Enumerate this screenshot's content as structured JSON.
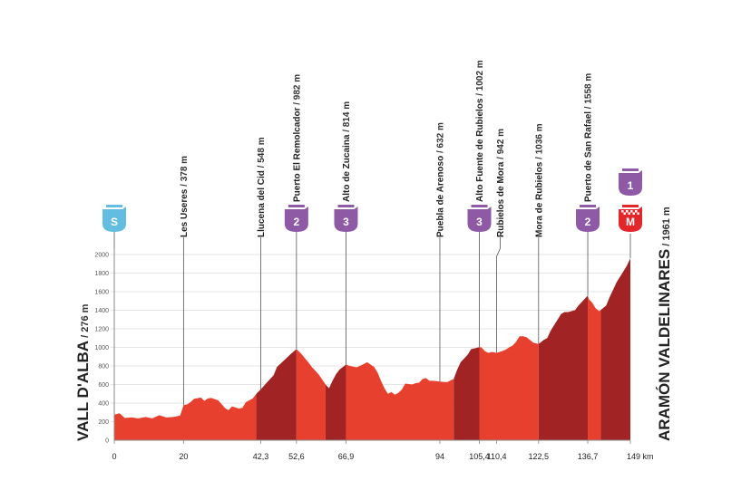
{
  "chart_data": {
    "type": "area",
    "title": "",
    "xlabel": "",
    "ylabel": "",
    "x_unit": "km",
    "y_unit": "m",
    "xlim": [
      0,
      149
    ],
    "ylim": [
      0,
      2000
    ],
    "y_ticks": [
      0,
      200,
      400,
      600,
      800,
      1000,
      1200,
      1400,
      1600,
      1800,
      2000
    ],
    "x_ticks": [
      {
        "value": 0,
        "label": "0"
      },
      {
        "value": 20,
        "label": "20"
      },
      {
        "value": 42.3,
        "label": "42,3"
      },
      {
        "value": 52.6,
        "label": "52,6"
      },
      {
        "value": 66.9,
        "label": "66,9"
      },
      {
        "value": 94,
        "label": "94"
      },
      {
        "value": 105.4,
        "label": "105,4"
      },
      {
        "value": 110.4,
        "label": "110,4"
      },
      {
        "value": 122.5,
        "label": "122,5"
      },
      {
        "value": 136.7,
        "label": "136,7"
      },
      {
        "value": 149,
        "label": "149 km"
      }
    ],
    "profile": [
      [
        0,
        276
      ],
      [
        1.5,
        290
      ],
      [
        3,
        240
      ],
      [
        5,
        245
      ],
      [
        7,
        235
      ],
      [
        9,
        250
      ],
      [
        11,
        235
      ],
      [
        13,
        270
      ],
      [
        15,
        245
      ],
      [
        17,
        250
      ],
      [
        19,
        265
      ],
      [
        20,
        378
      ],
      [
        21,
        385
      ],
      [
        22,
        410
      ],
      [
        23,
        445
      ],
      [
        25,
        460
      ],
      [
        26,
        425
      ],
      [
        27,
        450
      ],
      [
        28,
        455
      ],
      [
        30,
        430
      ],
      [
        32,
        345
      ],
      [
        33,
        325
      ],
      [
        34,
        365
      ],
      [
        36,
        340
      ],
      [
        37,
        350
      ],
      [
        38,
        410
      ],
      [
        40,
        450
      ],
      [
        41,
        500
      ],
      [
        42.3,
        548
      ],
      [
        44,
        620
      ],
      [
        46,
        700
      ],
      [
        47,
        790
      ],
      [
        49,
        860
      ],
      [
        51,
        930
      ],
      [
        52.6,
        982
      ],
      [
        54,
        930
      ],
      [
        56,
        840
      ],
      [
        57,
        790
      ],
      [
        59,
        710
      ],
      [
        61,
        600
      ],
      [
        62,
        560
      ],
      [
        63,
        640
      ],
      [
        64,
        710
      ],
      [
        65,
        760
      ],
      [
        66.9,
        814
      ],
      [
        68,
        800
      ],
      [
        70,
        785
      ],
      [
        72,
        820
      ],
      [
        73,
        840
      ],
      [
        74,
        815
      ],
      [
        75,
        790
      ],
      [
        76,
        730
      ],
      [
        77,
        640
      ],
      [
        78,
        560
      ],
      [
        79,
        500
      ],
      [
        80,
        520
      ],
      [
        81,
        490
      ],
      [
        82,
        510
      ],
      [
        83,
        545
      ],
      [
        84,
        610
      ],
      [
        86,
        600
      ],
      [
        87,
        615
      ],
      [
        88,
        620
      ],
      [
        89,
        660
      ],
      [
        90,
        670
      ],
      [
        91,
        640
      ],
      [
        92,
        640
      ],
      [
        94,
        632
      ],
      [
        96,
        625
      ],
      [
        98,
        660
      ],
      [
        99,
        760
      ],
      [
        100,
        840
      ],
      [
        102,
        920
      ],
      [
        103,
        980
      ],
      [
        105.4,
        1002
      ],
      [
        106,
        1000
      ],
      [
        107,
        960
      ],
      [
        108,
        940
      ],
      [
        109,
        950
      ],
      [
        110.4,
        942
      ],
      [
        112,
        960
      ],
      [
        113,
        975
      ],
      [
        114,
        1000
      ],
      [
        115,
        1020
      ],
      [
        116,
        1060
      ],
      [
        117,
        1120
      ],
      [
        118,
        1120
      ],
      [
        119,
        1110
      ],
      [
        120,
        1080
      ],
      [
        121,
        1050
      ],
      [
        122.5,
        1036
      ],
      [
        124,
        1080
      ],
      [
        125,
        1100
      ],
      [
        126,
        1180
      ],
      [
        128,
        1300
      ],
      [
        129,
        1360
      ],
      [
        130,
        1380
      ],
      [
        131,
        1380
      ],
      [
        133,
        1400
      ],
      [
        134,
        1450
      ],
      [
        136.7,
        1558
      ],
      [
        137,
        1520
      ],
      [
        138,
        1480
      ],
      [
        139,
        1420
      ],
      [
        140,
        1390
      ],
      [
        141,
        1420
      ],
      [
        142,
        1450
      ],
      [
        143,
        1540
      ],
      [
        144,
        1620
      ],
      [
        145,
        1700
      ],
      [
        146,
        1760
      ],
      [
        147,
        1820
      ],
      [
        148,
        1880
      ],
      [
        149,
        1961
      ]
    ],
    "segments": [
      {
        "from": 0,
        "to": 41,
        "tone": "light"
      },
      {
        "from": 41,
        "to": 52.6,
        "tone": "dark"
      },
      {
        "from": 52.6,
        "to": 61,
        "tone": "light"
      },
      {
        "from": 61,
        "to": 66.9,
        "tone": "dark"
      },
      {
        "from": 66.9,
        "to": 98,
        "tone": "light"
      },
      {
        "from": 98,
        "to": 105.4,
        "tone": "dark"
      },
      {
        "from": 105.4,
        "to": 122.5,
        "tone": "light"
      },
      {
        "from": 122.5,
        "to": 136.7,
        "tone": "dark"
      },
      {
        "from": 136.7,
        "to": 140.5,
        "tone": "light"
      },
      {
        "from": 140.5,
        "to": 149,
        "tone": "dark"
      }
    ],
    "colors": {
      "light": "#e8402f",
      "dark": "#a12324",
      "axis": "#888888",
      "grid": "#cccccc",
      "line": "#555555",
      "sprint": "#63bde0",
      "climb": "#8e5aa6",
      "finish": "#e3262a"
    },
    "waypoints": [
      {
        "km": 20,
        "name": "Les Useres",
        "alt": " / 378 m"
      },
      {
        "km": 42.3,
        "name": "Llucena del Cid",
        "alt": " / 548 m"
      },
      {
        "km": 52.6,
        "name": "Puerto El Remolcador",
        "alt": " / 982 m"
      },
      {
        "km": 66.9,
        "name": "Alto de Zucaina",
        "alt": " / 814 m"
      },
      {
        "km": 94,
        "name": "Puebla de Arenoso",
        "alt": " / 632 m"
      },
      {
        "km": 105.4,
        "name": "Alto Fuente de Rubielos",
        "alt": " / 1002 m"
      },
      {
        "km": 110.4,
        "name": "Rubielos de Mora",
        "alt": " / 942 m"
      },
      {
        "km": 122.5,
        "name": "Mora de Rubielos",
        "alt": " / 1036 m"
      },
      {
        "km": 136.7,
        "name": "Puerto de San Rafael",
        "alt": " / 1558 m"
      }
    ],
    "badges": [
      {
        "km": 0,
        "label": "S",
        "kind": "sprint"
      },
      {
        "km": 52.6,
        "label": "2",
        "kind": "climb"
      },
      {
        "km": 66.9,
        "label": "3",
        "kind": "climb"
      },
      {
        "km": 105.4,
        "label": "3",
        "kind": "climb"
      },
      {
        "km": 136.7,
        "label": "2",
        "kind": "climb"
      },
      {
        "km": 149,
        "label": "1",
        "kind": "climb",
        "stack": "upper"
      },
      {
        "km": 149,
        "label": "M",
        "kind": "finish"
      }
    ],
    "start": {
      "name": "VALL D'ALBA",
      "alt": " / 276 m"
    },
    "finish": {
      "name": "ARAMÓN VALDELINARES",
      "alt": " / 1961 m"
    }
  }
}
